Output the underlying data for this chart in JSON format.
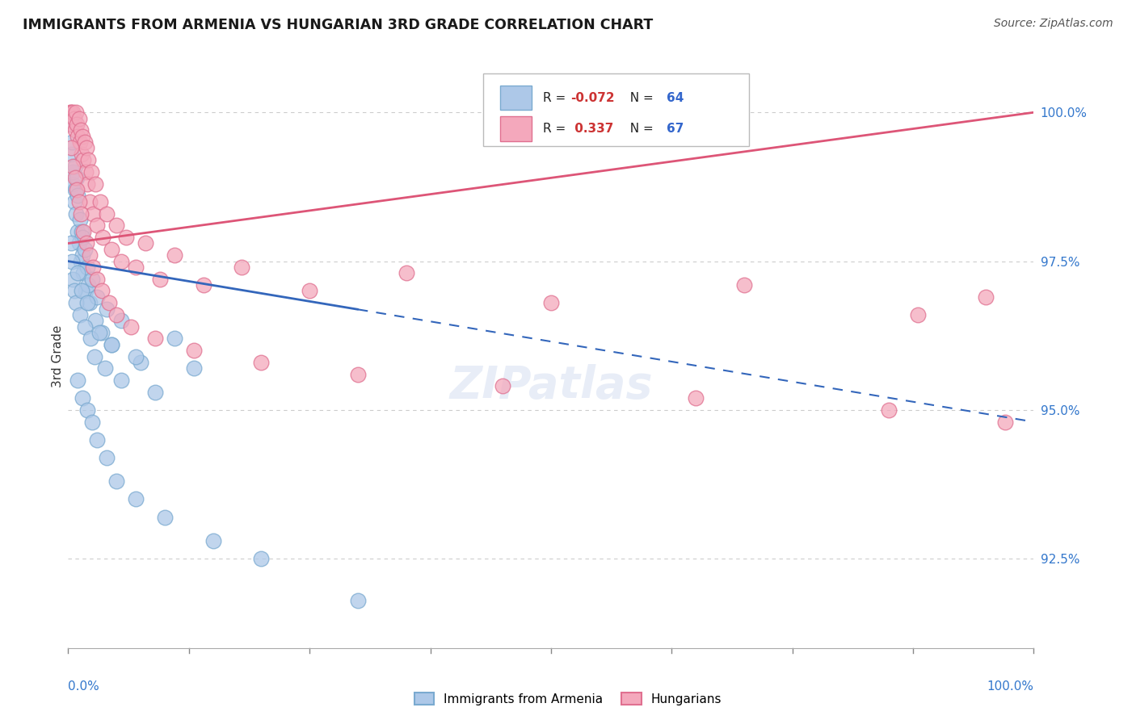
{
  "title": "IMMIGRANTS FROM ARMENIA VS HUNGARIAN 3RD GRADE CORRELATION CHART",
  "source": "Source: ZipAtlas.com",
  "ylabel": "3rd Grade",
  "ylabel_values": [
    92.5,
    95.0,
    97.5,
    100.0
  ],
  "xmin": 0.0,
  "xmax": 100.0,
  "ymin": 91.0,
  "ymax": 100.8,
  "legend_r_blue": "-0.072",
  "legend_n_blue": "64",
  "legend_r_pink": "0.337",
  "legend_n_pink": "67",
  "blue_color": "#adc8e8",
  "pink_color": "#f4a8bc",
  "blue_edge_color": "#7aaad0",
  "pink_edge_color": "#e07090",
  "blue_line_color": "#3366bb",
  "pink_line_color": "#dd5577",
  "grid_color": "#cccccc",
  "blue_scatter_x": [
    0.2,
    0.3,
    0.4,
    0.5,
    0.5,
    0.6,
    0.7,
    0.7,
    0.8,
    0.9,
    1.0,
    1.0,
    1.1,
    1.2,
    1.3,
    1.4,
    1.5,
    1.5,
    1.6,
    1.7,
    1.8,
    2.0,
    2.1,
    2.2,
    2.5,
    2.8,
    3.0,
    3.5,
    4.0,
    4.5,
    5.5,
    7.5,
    11.0,
    0.3,
    0.4,
    0.5,
    0.6,
    0.8,
    1.0,
    1.2,
    1.4,
    1.7,
    2.0,
    2.3,
    2.7,
    3.2,
    3.8,
    4.5,
    5.5,
    7.0,
    9.0,
    13.0,
    1.0,
    1.5,
    2.0,
    2.5,
    3.0,
    4.0,
    5.0,
    7.0,
    10.0,
    15.0,
    20.0,
    30.0
  ],
  "blue_scatter_y": [
    99.8,
    99.3,
    99.5,
    98.8,
    99.0,
    98.5,
    98.7,
    99.1,
    98.3,
    98.9,
    98.0,
    98.6,
    97.8,
    98.2,
    97.5,
    98.0,
    97.6,
    97.9,
    97.3,
    97.7,
    97.0,
    97.4,
    97.1,
    96.8,
    97.2,
    96.5,
    96.9,
    96.3,
    96.7,
    96.1,
    96.5,
    95.8,
    96.2,
    97.8,
    97.5,
    97.2,
    97.0,
    96.8,
    97.3,
    96.6,
    97.0,
    96.4,
    96.8,
    96.2,
    95.9,
    96.3,
    95.7,
    96.1,
    95.5,
    95.9,
    95.3,
    95.7,
    95.5,
    95.2,
    95.0,
    94.8,
    94.5,
    94.2,
    93.8,
    93.5,
    93.2,
    92.8,
    92.5,
    91.8
  ],
  "pink_scatter_x": [
    0.2,
    0.3,
    0.4,
    0.5,
    0.6,
    0.7,
    0.8,
    0.9,
    1.0,
    1.1,
    1.2,
    1.3,
    1.4,
    1.5,
    1.6,
    1.7,
    1.8,
    1.9,
    2.0,
    2.1,
    2.2,
    2.4,
    2.6,
    2.8,
    3.0,
    3.3,
    3.6,
    4.0,
    4.5,
    5.0,
    5.5,
    6.0,
    7.0,
    8.0,
    9.5,
    11.0,
    14.0,
    18.0,
    25.0,
    35.0,
    50.0,
    70.0,
    88.0,
    95.0,
    0.3,
    0.5,
    0.7,
    0.9,
    1.1,
    1.3,
    1.6,
    1.9,
    2.2,
    2.6,
    3.0,
    3.5,
    4.2,
    5.0,
    6.5,
    9.0,
    13.0,
    20.0,
    30.0,
    45.0,
    65.0,
    85.0,
    97.0
  ],
  "pink_scatter_y": [
    100.0,
    100.0,
    99.8,
    100.0,
    99.9,
    99.7,
    100.0,
    99.8,
    99.6,
    99.9,
    99.5,
    99.7,
    99.3,
    99.6,
    99.2,
    99.5,
    99.0,
    99.4,
    98.8,
    99.2,
    98.5,
    99.0,
    98.3,
    98.8,
    98.1,
    98.5,
    97.9,
    98.3,
    97.7,
    98.1,
    97.5,
    97.9,
    97.4,
    97.8,
    97.2,
    97.6,
    97.1,
    97.4,
    97.0,
    97.3,
    96.8,
    97.1,
    96.6,
    96.9,
    99.4,
    99.1,
    98.9,
    98.7,
    98.5,
    98.3,
    98.0,
    97.8,
    97.6,
    97.4,
    97.2,
    97.0,
    96.8,
    96.6,
    96.4,
    96.2,
    96.0,
    95.8,
    95.6,
    95.4,
    95.2,
    95.0,
    94.8
  ],
  "blue_line_x0": 0.0,
  "blue_line_y0": 97.5,
  "blue_line_x1": 100.0,
  "blue_line_y1": 94.8,
  "blue_solid_end": 30.0,
  "pink_line_x0": 0.0,
  "pink_line_y0": 97.8,
  "pink_line_x1": 100.0,
  "pink_line_y1": 100.0
}
